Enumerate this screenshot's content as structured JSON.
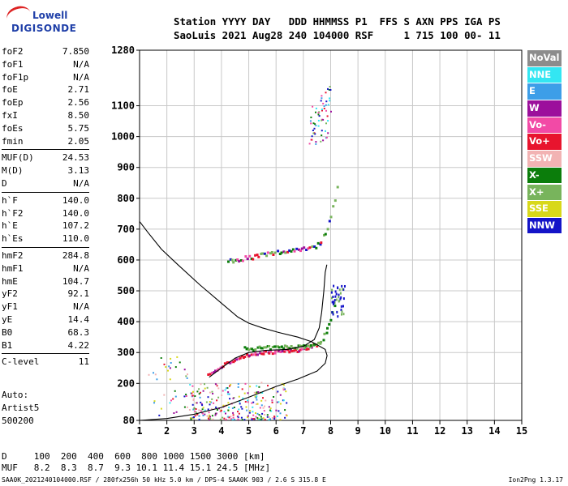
{
  "logo": {
    "line1": "Lowell",
    "line2": "DIGISONDE"
  },
  "header": {
    "line1": "Station YYYY DAY   DDD HHMMSS P1  FFS S AXN PPS IGA PS",
    "line2": "SaoLuis 2021 Aug28 240 104000 RSF     1 715 100 00- 11"
  },
  "params": [
    {
      "group": [
        {
          "label": "foF2",
          "value": "7.850"
        },
        {
          "label": "foF1",
          "value": "N/A"
        },
        {
          "label": "foF1p",
          "value": "N/A"
        },
        {
          "label": "foE",
          "value": "2.71"
        },
        {
          "label": "foEp",
          "value": "2.56"
        },
        {
          "label": "fxI",
          "value": "8.50"
        },
        {
          "label": "foEs",
          "value": "5.75"
        },
        {
          "label": "fmin",
          "value": "2.05"
        }
      ]
    },
    {
      "group": [
        {
          "label": "MUF(D)",
          "value": "24.53"
        },
        {
          "label": "M(D)",
          "value": "3.13"
        },
        {
          "label": "D",
          "value": "N/A"
        }
      ]
    },
    {
      "group": [
        {
          "label": "h`F",
          "value": "140.0"
        },
        {
          "label": "h`F2",
          "value": "140.0"
        },
        {
          "label": "h`E",
          "value": "107.2"
        },
        {
          "label": "h`Es",
          "value": "110.0"
        }
      ]
    },
    {
      "group": [
        {
          "label": "hmF2",
          "value": "284.8"
        },
        {
          "label": "hmF1",
          "value": "N/A"
        },
        {
          "label": "hmE",
          "value": "104.7"
        },
        {
          "label": "yF2",
          "value": "92.1"
        },
        {
          "label": "yF1",
          "value": "N/A"
        },
        {
          "label": "yE",
          "value": "14.4"
        },
        {
          "label": "B0",
          "value": "68.3"
        },
        {
          "label": "B1",
          "value": "4.22"
        }
      ]
    },
    {
      "group": [
        {
          "label": "C-level",
          "value": "11"
        }
      ]
    }
  ],
  "auto": {
    "line1": "Auto:",
    "line2": "Artist5",
    "line3": "500200"
  },
  "muf_table": {
    "d_line": "D     100  200  400  600  800 1000 1500 3000 [km]",
    "muf_line": "MUF   8.2  8.3  8.7  9.3 10.1 11.4 15.1 24.5 [MHz]"
  },
  "footer": "SAA0K_2021240104000.RSF / 280fx256h 50 kHz 5.0 km / DPS-4 SAA0K 903 / 2.6 S 315.8 E",
  "version": "Ion2Png 1.3.17",
  "legend": [
    {
      "label": "NoVal",
      "color": "#8c8c8c"
    },
    {
      "label": "NNE",
      "color": "#33e6f2"
    },
    {
      "label": "E",
      "color": "#3d9ee8"
    },
    {
      "label": "W",
      "color": "#9c0f9c"
    },
    {
      "label": "Vo-",
      "color": "#f24aa6"
    },
    {
      "label": "Vo+",
      "color": "#e8142e"
    },
    {
      "label": "SSW",
      "color": "#f2b3b3"
    },
    {
      "label": "X-",
      "color": "#0b7d0b"
    },
    {
      "label": "X+",
      "color": "#78b45c"
    },
    {
      "label": "SSE",
      "color": "#d8d81a"
    },
    {
      "label": "NNW",
      "color": "#1414c8"
    }
  ],
  "chart_data": {
    "type": "scatter",
    "xlim": [
      1,
      15
    ],
    "ylim": [
      80,
      1280
    ],
    "xticks": [
      1,
      2,
      3,
      4,
      5,
      6,
      7,
      8,
      9,
      10,
      11,
      12,
      13,
      14,
      15
    ],
    "yticks": [
      80,
      200,
      300,
      400,
      500,
      600,
      700,
      800,
      900,
      1000,
      1100,
      1280
    ],
    "grid": true,
    "series": [
      {
        "line": "solid",
        "points": [
          [
            1,
            80
          ],
          [
            2,
            86
          ],
          [
            3,
            100
          ],
          [
            4,
            122
          ],
          [
            5,
            155
          ],
          [
            6,
            190
          ],
          [
            6.8,
            214
          ],
          [
            7.5,
            240
          ],
          [
            7.8,
            265
          ],
          [
            7.87,
            290
          ],
          [
            7.8,
            310
          ],
          [
            7.3,
            335
          ],
          [
            6.8,
            350
          ],
          [
            6.1,
            365
          ],
          [
            5.5,
            380
          ],
          [
            5,
            395
          ],
          [
            4.6,
            415
          ],
          [
            4,
            460
          ],
          [
            3.2,
            520
          ],
          [
            2.4,
            585
          ],
          [
            1.8,
            635
          ],
          [
            1.3,
            690
          ],
          [
            1,
            725
          ]
        ]
      },
      {
        "line": "solid",
        "points": [
          [
            3.55,
            220
          ],
          [
            4.0,
            250
          ],
          [
            4.5,
            282
          ],
          [
            5,
            300
          ],
          [
            5.6,
            307
          ],
          [
            6.4,
            310
          ],
          [
            7.0,
            320
          ],
          [
            7.4,
            342
          ],
          [
            7.58,
            380
          ],
          [
            7.67,
            430
          ],
          [
            7.75,
            500
          ],
          [
            7.8,
            560
          ],
          [
            7.86,
            585
          ]
        ]
      }
    ]
  }
}
